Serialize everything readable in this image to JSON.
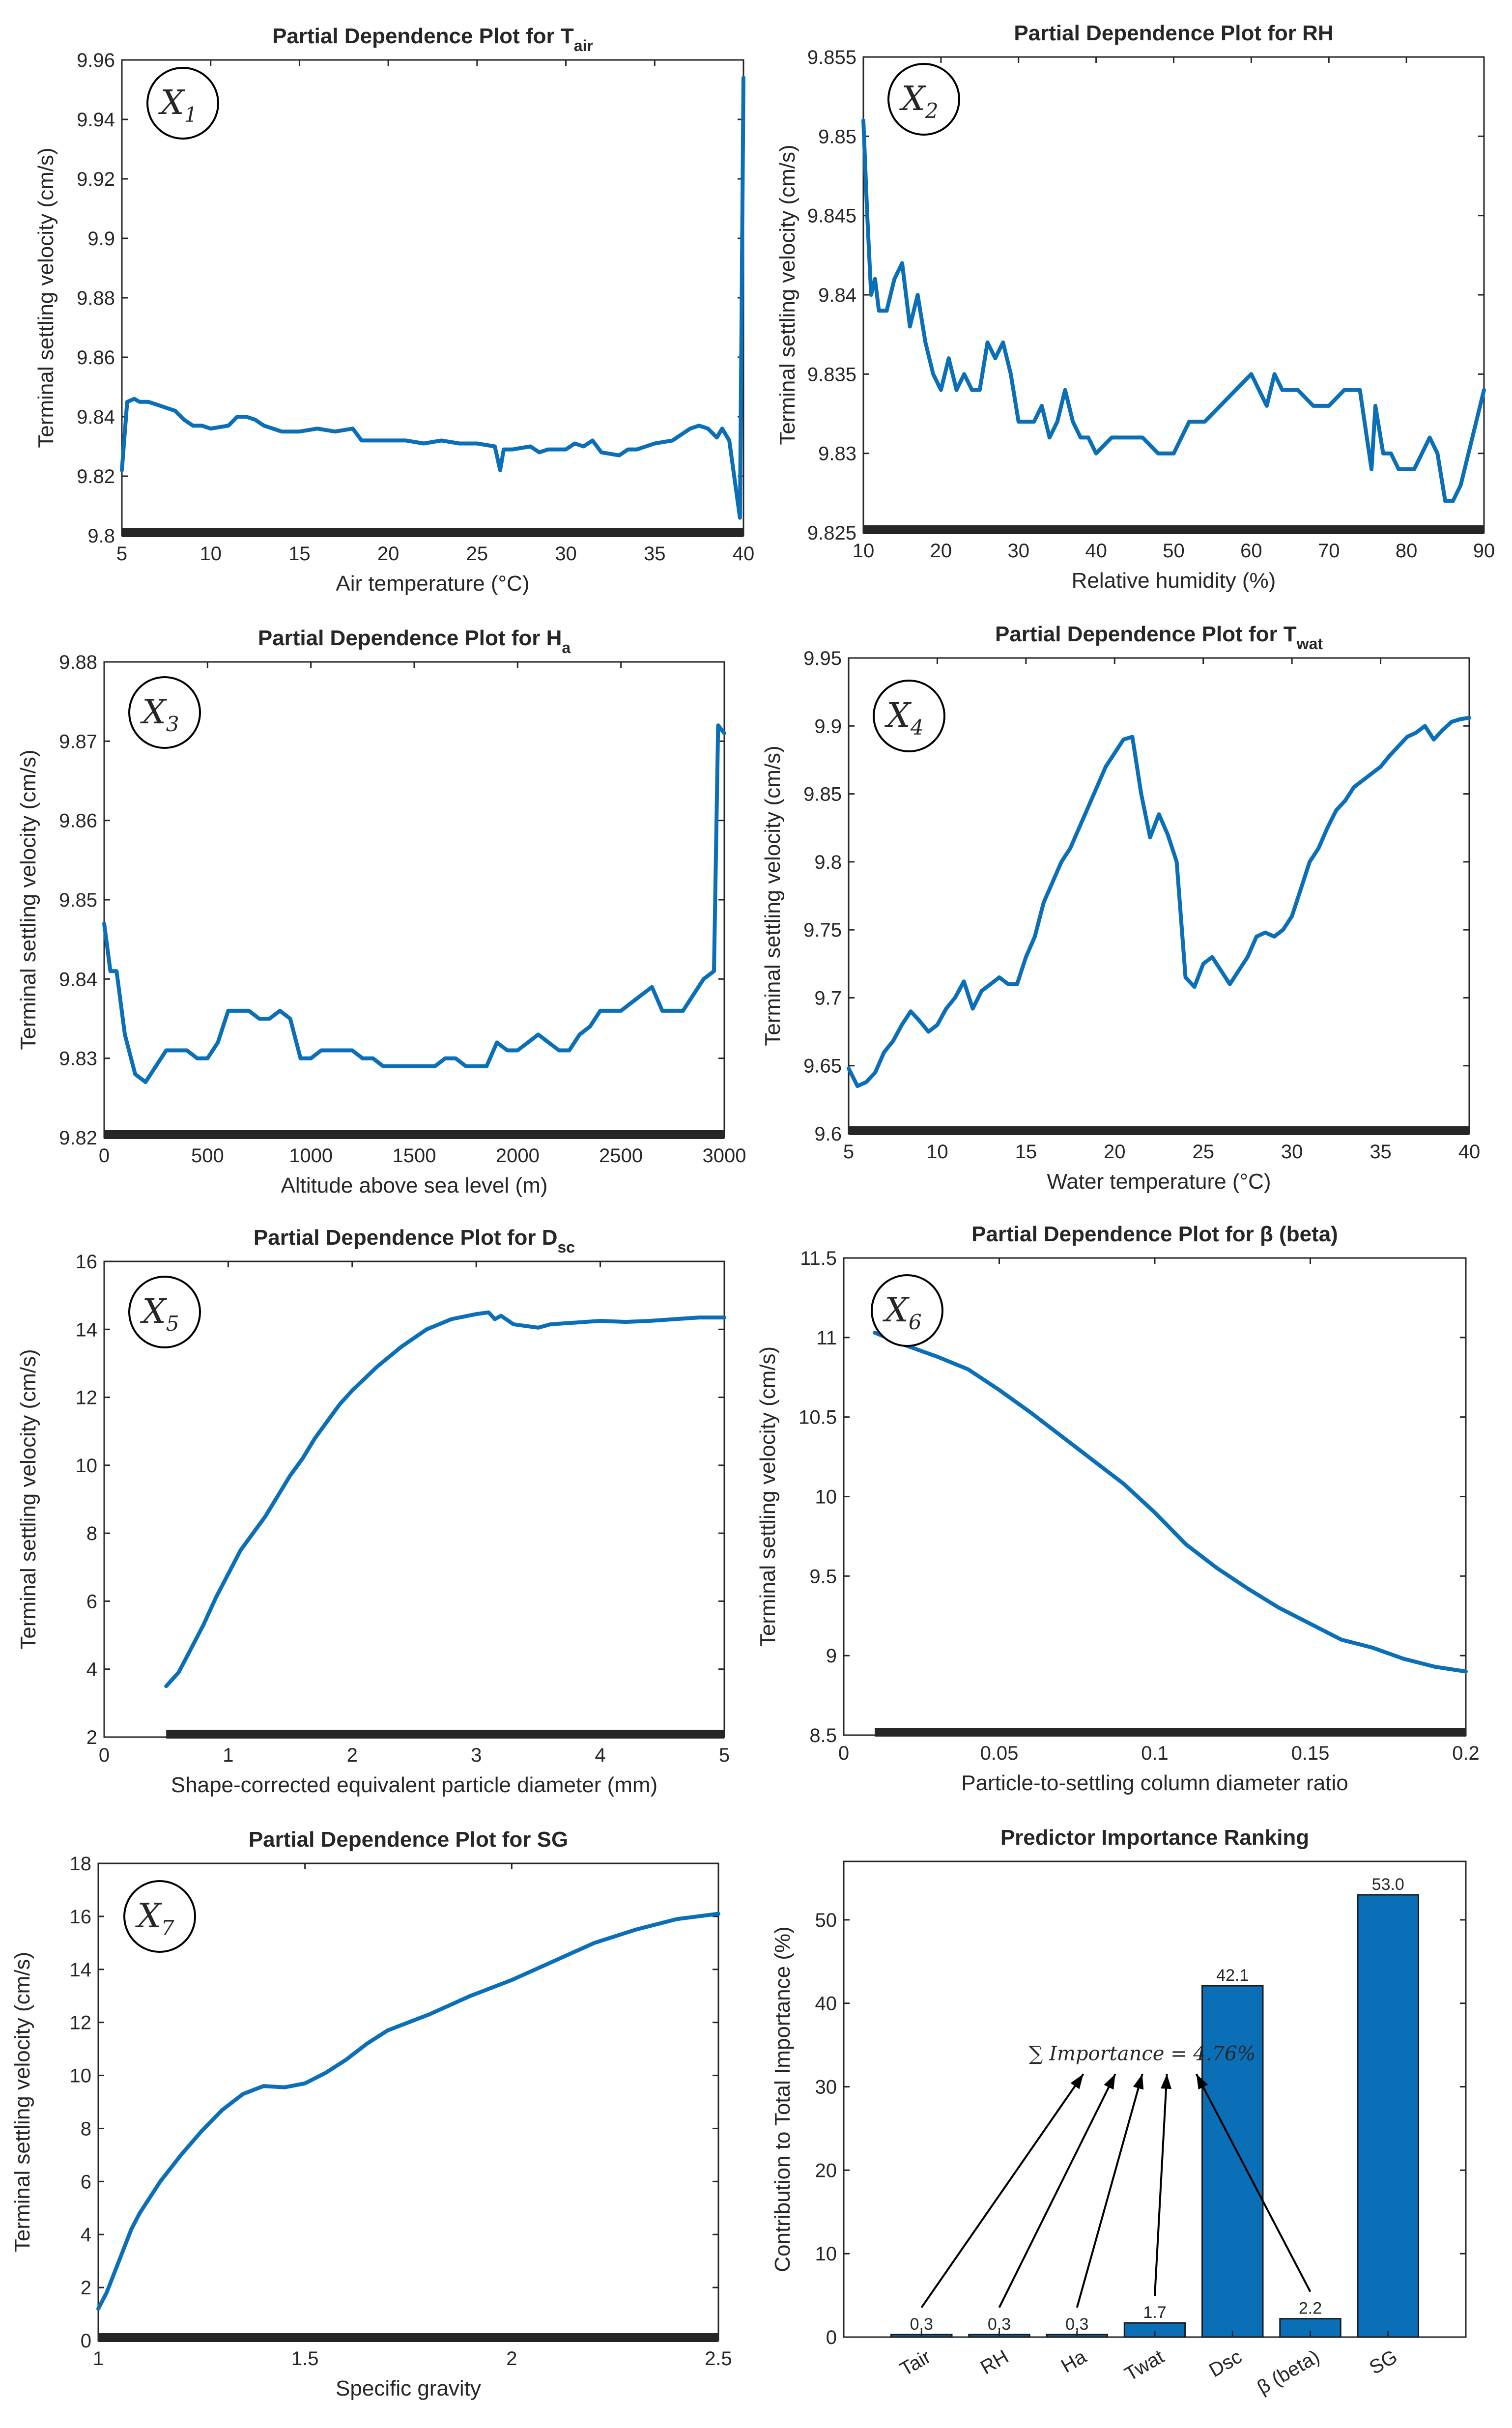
{
  "colors": {
    "line": "#0b6fb8",
    "bar": "#0b6fb8",
    "axis": "#262626",
    "background": "#ffffff"
  },
  "chart_data": [
    {
      "type": "line",
      "panel": "X1",
      "badge": {
        "letter": "X",
        "sub": "1"
      },
      "title": {
        "main": "Partial Dependence Plot for T",
        "sub": "air"
      },
      "xlabel": "Air temperature (°C)",
      "ylabel": "Terminal settling velocity (cm/s)",
      "xlim": [
        5,
        40
      ],
      "ylim": [
        9.8,
        9.96
      ],
      "xticks": [
        5,
        10,
        15,
        20,
        25,
        30,
        35,
        40
      ],
      "yticks": [
        9.8,
        9.82,
        9.84,
        9.86,
        9.88,
        9.9,
        9.92,
        9.94,
        9.96
      ],
      "ytick_labels": [
        "9.8",
        "9.82",
        "9.84",
        "9.86",
        "9.88",
        "9.9",
        "9.92",
        "9.94",
        "9.96"
      ],
      "rug": [
        5,
        40
      ],
      "x": [
        5,
        5.3,
        5.7,
        6.0,
        6.5,
        7.0,
        7.5,
        8.0,
        8.5,
        9.0,
        9.5,
        10,
        11,
        11.5,
        12,
        12.5,
        13,
        14,
        15,
        16,
        17,
        18,
        18.5,
        19,
        20,
        21,
        22,
        23,
        24,
        25,
        26,
        26.3,
        26.5,
        27,
        28,
        28.5,
        29,
        30,
        30.5,
        31,
        31.5,
        32,
        33,
        33.5,
        34,
        35,
        36,
        36.5,
        37,
        37.5,
        38,
        38.5,
        38.8,
        39.2,
        39.5,
        39.8,
        40
      ],
      "y": [
        9.822,
        9.845,
        9.846,
        9.845,
        9.845,
        9.844,
        9.843,
        9.842,
        9.839,
        9.837,
        9.837,
        9.836,
        9.837,
        9.84,
        9.84,
        9.839,
        9.837,
        9.835,
        9.835,
        9.836,
        9.835,
        9.836,
        9.832,
        9.832,
        9.832,
        9.832,
        9.831,
        9.832,
        9.831,
        9.831,
        9.83,
        9.822,
        9.829,
        9.829,
        9.83,
        9.828,
        9.829,
        9.829,
        9.831,
        9.83,
        9.832,
        9.828,
        9.827,
        9.829,
        9.829,
        9.831,
        9.832,
        9.834,
        9.836,
        9.837,
        9.836,
        9.833,
        9.836,
        9.832,
        9.819,
        9.806,
        9.954
      ]
    },
    {
      "type": "line",
      "panel": "X2",
      "badge": {
        "letter": "X",
        "sub": "2"
      },
      "title": {
        "main": "Partial Dependence Plot for RH",
        "sub": ""
      },
      "xlabel": "Relative humidity (%)",
      "ylabel": "Terminal settling velocity (cm/s)",
      "xlim": [
        10,
        90
      ],
      "ylim": [
        9.825,
        9.855
      ],
      "xticks": [
        10,
        20,
        30,
        40,
        50,
        60,
        70,
        80,
        90
      ],
      "yticks": [
        9.825,
        9.83,
        9.835,
        9.84,
        9.845,
        9.85,
        9.855
      ],
      "ytick_labels": [
        "9.825",
        "9.83",
        "9.835",
        "9.84",
        "9.845",
        "9.85",
        "9.855"
      ],
      "rug": [
        10,
        90
      ],
      "x": [
        10,
        10.5,
        11,
        11.5,
        12,
        13,
        14,
        15,
        16,
        17,
        18,
        19,
        20,
        21,
        22,
        23,
        24,
        25,
        26,
        27,
        28,
        29,
        30,
        31,
        32,
        33,
        34,
        35,
        36,
        37,
        38,
        39,
        40,
        42,
        44,
        46,
        48,
        50,
        52,
        54,
        56,
        58,
        60,
        61,
        62,
        63,
        64,
        66,
        68,
        70,
        72,
        74,
        75.5,
        76,
        77,
        78,
        79,
        80,
        81,
        82,
        83,
        84,
        85,
        86,
        87,
        88,
        89,
        90
      ],
      "y": [
        9.851,
        9.845,
        9.84,
        9.841,
        9.839,
        9.839,
        9.841,
        9.842,
        9.838,
        9.84,
        9.837,
        9.835,
        9.834,
        9.836,
        9.834,
        9.835,
        9.834,
        9.834,
        9.837,
        9.836,
        9.837,
        9.835,
        9.832,
        9.832,
        9.832,
        9.833,
        9.831,
        9.832,
        9.834,
        9.832,
        9.831,
        9.831,
        9.83,
        9.831,
        9.831,
        9.831,
        9.83,
        9.83,
        9.832,
        9.832,
        9.833,
        9.834,
        9.835,
        9.834,
        9.833,
        9.835,
        9.834,
        9.834,
        9.833,
        9.833,
        9.834,
        9.834,
        9.829,
        9.833,
        9.83,
        9.83,
        9.829,
        9.829,
        9.829,
        9.83,
        9.831,
        9.83,
        9.827,
        9.827,
        9.828,
        9.83,
        9.832,
        9.834
      ]
    },
    {
      "type": "line",
      "panel": "X3",
      "badge": {
        "letter": "X",
        "sub": "3"
      },
      "title": {
        "main": "Partial Dependence Plot for H",
        "sub": "a"
      },
      "xlabel": "Altitude above sea level (m)",
      "ylabel": "Terminal settling velocity (cm/s)",
      "xlim": [
        0,
        3000
      ],
      "ylim": [
        9.82,
        9.88
      ],
      "xticks": [
        0,
        500,
        1000,
        1500,
        2000,
        2500,
        3000
      ],
      "yticks": [
        9.82,
        9.83,
        9.84,
        9.85,
        9.86,
        9.87,
        9.88
      ],
      "ytick_labels": [
        "9.82",
        "9.83",
        "9.84",
        "9.85",
        "9.86",
        "9.87",
        "9.88"
      ],
      "rug": [
        0,
        3000
      ],
      "x": [
        0,
        30,
        60,
        100,
        150,
        200,
        250,
        300,
        350,
        400,
        450,
        500,
        550,
        600,
        650,
        700,
        750,
        800,
        850,
        900,
        950,
        1000,
        1050,
        1100,
        1150,
        1200,
        1250,
        1300,
        1350,
        1400,
        1450,
        1500,
        1550,
        1600,
        1650,
        1700,
        1750,
        1800,
        1850,
        1900,
        1950,
        2000,
        2050,
        2100,
        2150,
        2200,
        2250,
        2300,
        2350,
        2400,
        2450,
        2500,
        2550,
        2600,
        2650,
        2700,
        2750,
        2800,
        2850,
        2900,
        2950,
        2970,
        3000
      ],
      "y": [
        9.847,
        9.841,
        9.841,
        9.833,
        9.828,
        9.827,
        9.829,
        9.831,
        9.831,
        9.831,
        9.83,
        9.83,
        9.832,
        9.836,
        9.836,
        9.836,
        9.835,
        9.835,
        9.836,
        9.835,
        9.83,
        9.83,
        9.831,
        9.831,
        9.831,
        9.831,
        9.83,
        9.83,
        9.829,
        9.829,
        9.829,
        9.829,
        9.829,
        9.829,
        9.83,
        9.83,
        9.829,
        9.829,
        9.829,
        9.832,
        9.831,
        9.831,
        9.832,
        9.833,
        9.832,
        9.831,
        9.831,
        9.833,
        9.834,
        9.836,
        9.836,
        9.836,
        9.837,
        9.838,
        9.839,
        9.836,
        9.836,
        9.836,
        9.838,
        9.84,
        9.841,
        9.872,
        9.871
      ]
    },
    {
      "type": "line",
      "panel": "X4",
      "badge": {
        "letter": "X",
        "sub": "4"
      },
      "title": {
        "main": "Partial Dependence Plot for T",
        "sub": "wat"
      },
      "xlabel": "Water temperature (°C)",
      "ylabel": "Terminal settling velocity (cm/s)",
      "xlim": [
        5,
        40
      ],
      "ylim": [
        9.6,
        9.95
      ],
      "xticks": [
        5,
        10,
        15,
        20,
        25,
        30,
        35,
        40
      ],
      "yticks": [
        9.6,
        9.65,
        9.7,
        9.75,
        9.8,
        9.85,
        9.9,
        9.95
      ],
      "ytick_labels": [
        "9.6",
        "9.65",
        "9.7",
        "9.75",
        "9.8",
        "9.85",
        "9.9",
        "9.95"
      ],
      "rug": [
        5,
        40
      ],
      "x": [
        5,
        5.5,
        6,
        6.5,
        7,
        7.5,
        8,
        8.5,
        9,
        9.5,
        10,
        10.5,
        11,
        11.5,
        12,
        12.5,
        13,
        13.5,
        14,
        14.5,
        15,
        15.5,
        16,
        16.5,
        17,
        17.5,
        18,
        18.5,
        19,
        19.5,
        20,
        20.5,
        21,
        21.5,
        22,
        22.5,
        23,
        23.5,
        24,
        24.5,
        25,
        25.5,
        26,
        26.5,
        27,
        27.5,
        28,
        28.5,
        29,
        29.5,
        30,
        30.5,
        31,
        31.5,
        32,
        32.5,
        33,
        33.5,
        34,
        34.5,
        35,
        35.5,
        36,
        36.5,
        37,
        37.5,
        38,
        38.5,
        39,
        39.5,
        40
      ],
      "y": [
        9.648,
        9.635,
        9.638,
        9.645,
        9.66,
        9.668,
        9.68,
        9.69,
        9.683,
        9.675,
        9.68,
        9.692,
        9.7,
        9.712,
        9.692,
        9.705,
        9.71,
        9.715,
        9.71,
        9.71,
        9.73,
        9.745,
        9.77,
        9.785,
        9.8,
        9.81,
        9.825,
        9.84,
        9.855,
        9.87,
        9.88,
        9.89,
        9.892,
        9.85,
        9.818,
        9.835,
        9.82,
        9.8,
        9.715,
        9.708,
        9.725,
        9.73,
        9.72,
        9.71,
        9.72,
        9.73,
        9.745,
        9.748,
        9.745,
        9.75,
        9.76,
        9.78,
        9.8,
        9.81,
        9.825,
        9.838,
        9.845,
        9.855,
        9.86,
        9.865,
        9.87,
        9.878,
        9.885,
        9.892,
        9.895,
        9.9,
        9.89,
        9.897,
        9.903,
        9.905,
        9.906
      ]
    },
    {
      "type": "line",
      "panel": "X5",
      "badge": {
        "letter": "X",
        "sub": "5"
      },
      "title": {
        "main": "Partial Dependence Plot for D",
        "sub": "sc"
      },
      "xlabel": "Shape-corrected equivalent particle diameter (mm)",
      "ylabel": "Terminal settling velocity (cm/s)",
      "xlim": [
        0,
        5
      ],
      "ylim": [
        2,
        16
      ],
      "xticks": [
        0,
        1,
        2,
        3,
        4,
        5
      ],
      "yticks": [
        2,
        4,
        6,
        8,
        10,
        12,
        14,
        16
      ],
      "ytick_labels": [
        "2",
        "4",
        "6",
        "8",
        "10",
        "12",
        "14",
        "16"
      ],
      "rug": [
        0.5,
        5
      ],
      "x": [
        0.5,
        0.6,
        0.7,
        0.8,
        0.9,
        1.0,
        1.1,
        1.2,
        1.3,
        1.4,
        1.5,
        1.6,
        1.7,
        1.8,
        1.9,
        2.0,
        2.2,
        2.4,
        2.6,
        2.8,
        3.0,
        3.1,
        3.15,
        3.2,
        3.3,
        3.4,
        3.5,
        3.6,
        3.8,
        4.0,
        4.2,
        4.4,
        4.6,
        4.8,
        5.0
      ],
      "y": [
        3.5,
        3.9,
        4.6,
        5.3,
        6.1,
        6.8,
        7.5,
        8.0,
        8.5,
        9.1,
        9.7,
        10.2,
        10.8,
        11.3,
        11.8,
        12.2,
        12.9,
        13.5,
        14.0,
        14.3,
        14.45,
        14.5,
        14.3,
        14.4,
        14.15,
        14.1,
        14.05,
        14.15,
        14.2,
        14.25,
        14.22,
        14.25,
        14.3,
        14.35,
        14.35
      ]
    },
    {
      "type": "line",
      "panel": "X6",
      "badge": {
        "letter": "X",
        "sub": "6"
      },
      "title": {
        "main": "Partial Dependence Plot for β (beta)",
        "sub": ""
      },
      "xlabel": "Particle-to-settling column diameter ratio",
      "ylabel": "Terminal settling velocity (cm/s)",
      "xlim": [
        0,
        0.2
      ],
      "ylim": [
        8.5,
        11.5
      ],
      "xticks": [
        0,
        0.05,
        0.1,
        0.15,
        0.2
      ],
      "yticks": [
        8.5,
        9,
        9.5,
        10,
        10.5,
        11,
        11.5
      ],
      "ytick_labels": [
        "8.5",
        "9",
        "9.5",
        "10",
        "10.5",
        "11",
        "11.5"
      ],
      "rug": [
        0.01,
        0.2
      ],
      "x": [
        0.01,
        0.02,
        0.03,
        0.04,
        0.05,
        0.06,
        0.07,
        0.08,
        0.09,
        0.1,
        0.11,
        0.12,
        0.13,
        0.14,
        0.15,
        0.16,
        0.17,
        0.18,
        0.19,
        0.2
      ],
      "y": [
        11.03,
        10.95,
        10.88,
        10.8,
        10.67,
        10.53,
        10.38,
        10.23,
        10.08,
        9.9,
        9.7,
        9.55,
        9.42,
        9.3,
        9.2,
        9.1,
        9.05,
        8.98,
        8.93,
        8.9
      ]
    },
    {
      "type": "line",
      "panel": "X7",
      "badge": {
        "letter": "X",
        "sub": "7"
      },
      "title": {
        "main": "Partial Dependence Plot for SG",
        "sub": ""
      },
      "xlabel": "Specific gravity",
      "ylabel": "Terminal settling velocity (cm/s)",
      "xlim": [
        1,
        2.5
      ],
      "ylim": [
        0,
        18
      ],
      "xticks": [
        1,
        1.5,
        2,
        2.5
      ],
      "yticks": [
        0,
        2,
        4,
        6,
        8,
        10,
        12,
        14,
        16,
        18
      ],
      "ytick_labels": [
        "0",
        "2",
        "4",
        "6",
        "8",
        "10",
        "12",
        "14",
        "16",
        "18"
      ],
      "rug": [
        1,
        2.5
      ],
      "x": [
        1.0,
        1.02,
        1.05,
        1.08,
        1.1,
        1.15,
        1.2,
        1.25,
        1.3,
        1.35,
        1.4,
        1.45,
        1.5,
        1.55,
        1.6,
        1.65,
        1.7,
        1.8,
        1.9,
        2.0,
        2.1,
        2.2,
        2.3,
        2.4,
        2.5
      ],
      "y": [
        1.2,
        1.8,
        3.0,
        4.2,
        4.8,
        6.0,
        7.0,
        7.9,
        8.7,
        9.3,
        9.6,
        9.55,
        9.7,
        10.1,
        10.6,
        11.2,
        11.7,
        12.3,
        13.0,
        13.6,
        14.3,
        15.0,
        15.5,
        15.9,
        16.1
      ]
    },
    {
      "type": "bar",
      "panel": "importance",
      "title": {
        "main": "Predictor Importance Ranking",
        "sub": ""
      },
      "xlabel": "",
      "ylabel": "Contribution to Total Importance (%)",
      "ylim": [
        0,
        57
      ],
      "yticks": [
        0,
        10,
        20,
        30,
        40,
        50
      ],
      "ytick_labels": [
        "0",
        "10",
        "20",
        "30",
        "40",
        "50"
      ],
      "categories": [
        "Tair",
        "RH",
        "Ha",
        "Twat",
        "Dsc",
        "β (beta)",
        "SG"
      ],
      "values": [
        0.3,
        0.3,
        0.3,
        1.7,
        42.1,
        2.2,
        53.0
      ],
      "value_labels": [
        "0,3",
        "0,3",
        "0,3",
        "1.7",
        "42.1",
        "2.2",
        "53.0"
      ],
      "annotation": "∑ Importance = 4.76%"
    }
  ]
}
